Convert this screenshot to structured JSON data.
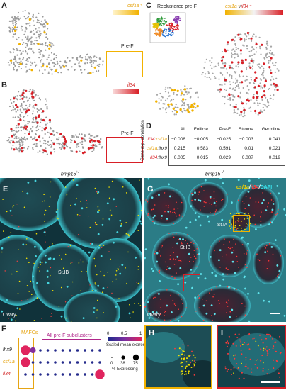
{
  "panels": {
    "a": {
      "letter": "A",
      "label": "csf1a⁺",
      "inset_label": "Pre-F"
    },
    "b": {
      "letter": "B",
      "label": "il34⁺",
      "inset_label": "Pre-F"
    },
    "c": {
      "letter": "C",
      "title": "Reclustered pre-F",
      "legend_left": "csf1a⁺",
      "legend_sep": "/",
      "legend_right": "il34⁺"
    },
    "d": {
      "letter": "D",
      "side_label": "Gene exp. correlation",
      "columns": [
        "All",
        "Follicle",
        "Pre-F",
        "Stroma",
        "Germline"
      ],
      "rows": [
        {
          "gene_a": "il34",
          "gene_b": "csf1a",
          "values": [
            "−0.008",
            "−0.005",
            "−0.025",
            "−0.003",
            "0.041"
          ]
        },
        {
          "gene_a": "csf1a",
          "gene_b": "lhx9",
          "values": [
            "0.215",
            "0.583",
            "0.591",
            "0.01",
            "0.021"
          ]
        },
        {
          "gene_a": "il34",
          "gene_b": "lhx9",
          "values": [
            "−0.005",
            "0.015",
            "−0.029",
            "−0.007",
            "0.019"
          ]
        }
      ]
    },
    "e": {
      "letter": "E",
      "genotype": "bmp15+/−",
      "label_stage": "St.IB",
      "label_tissue": "Ovary"
    },
    "g": {
      "letter": "G",
      "genotype": "bmp15−/−",
      "stain_1": "csf1a",
      "stain_2": "il34",
      "stain_3": "DAPI",
      "label_st1a": "St.IA",
      "label_st1b": "St.IB",
      "label_tissue": "Ovary"
    },
    "f": {
      "letter": "F",
      "mafcs_label": "MAFCs",
      "subclusters_label": "All pre-F subclusters",
      "genes": [
        "lhx9",
        "csf1a",
        "il34"
      ],
      "color_legend_title": "Scaled mean expression",
      "color_ticks": [
        "0",
        "0.5",
        "1"
      ],
      "size_legend_title": "% Expressing",
      "size_ticks": [
        "0",
        "38",
        "75"
      ]
    },
    "h": {
      "letter": "H"
    },
    "i": {
      "letter": "I"
    }
  },
  "colors": {
    "csf1a": "#f2b200",
    "il34": "#d81f26",
    "dapi": "#37c6cf",
    "grey": "#9a9a9a"
  }
}
